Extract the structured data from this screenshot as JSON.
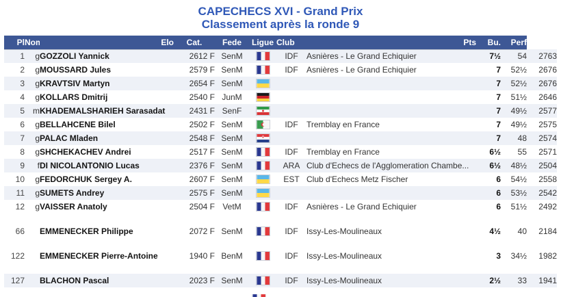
{
  "title": {
    "line1": "CAPECHECS XVI - Grand Prix",
    "line2": "Classement après la ronde 9"
  },
  "colors": {
    "title_blue": "#2f58b7",
    "header_bg": "#3d5795",
    "header_text": "#ffffff",
    "row_shaded_bg": "#eef1f7"
  },
  "table": {
    "headers": {
      "pl": "Pl",
      "nom": "Nom",
      "elo": "Elo",
      "cat": "Cat.",
      "fede": "Fede",
      "ligue": "Ligue",
      "club": "Club",
      "pts": "Pts",
      "bu": "Bu.",
      "perf": "Perf"
    },
    "rows": [
      {
        "rank": 1,
        "title": "g",
        "name": "GOZZOLI Yannick",
        "elo": "2612 F",
        "cat": "SenM",
        "flag": "FRA",
        "ligue": "IDF",
        "club": "Asnières - Le Grand Echiquier",
        "pts": "7½",
        "bu": "54",
        "perf": "2763",
        "gap_before": false
      },
      {
        "rank": 2,
        "title": "g",
        "name": "MOUSSARD Jules",
        "elo": "2579 F",
        "cat": "SenM",
        "flag": "FRA",
        "ligue": "IDF",
        "club": "Asnières - Le Grand Echiquier",
        "pts": "7",
        "bu": "52½",
        "perf": "2676",
        "gap_before": false
      },
      {
        "rank": 3,
        "title": "g",
        "name": "KRAVTSIV Martyn",
        "elo": "2654 F",
        "cat": "SenM",
        "flag": "UKR",
        "ligue": "",
        "club": "",
        "pts": "7",
        "bu": "52½",
        "perf": "2676",
        "gap_before": false
      },
      {
        "rank": 4,
        "title": "g",
        "name": "KOLLARS Dmitrij",
        "elo": "2540 F",
        "cat": "JunM",
        "flag": "GER",
        "ligue": "",
        "club": "",
        "pts": "7",
        "bu": "51½",
        "perf": "2646",
        "gap_before": false
      },
      {
        "rank": 5,
        "title": "m",
        "name": "KHADEMALSHARIEH Sarasadat",
        "elo": "2431 F",
        "cat": "SenF",
        "flag": "IRI",
        "ligue": "",
        "club": "",
        "pts": "7",
        "bu": "49½",
        "perf": "2577",
        "gap_before": false
      },
      {
        "rank": 6,
        "title": "g",
        "name": "BELLAHCENE Bilel",
        "elo": "2502 F",
        "cat": "SenM",
        "flag": "ALG",
        "ligue": "IDF",
        "club": "Tremblay en France",
        "pts": "7",
        "bu": "49½",
        "perf": "2575",
        "gap_before": false
      },
      {
        "rank": 7,
        "title": "g",
        "name": "PALAC Mladen",
        "elo": "2548 F",
        "cat": "SenM",
        "flag": "CRO",
        "ligue": "",
        "club": "",
        "pts": "7",
        "bu": "48",
        "perf": "2574",
        "gap_before": false
      },
      {
        "rank": 8,
        "title": "g",
        "name": "SHCHEKACHEV Andrei",
        "elo": "2517 F",
        "cat": "SenM",
        "flag": "FRA",
        "ligue": "IDF",
        "club": "Tremblay en France",
        "pts": "6½",
        "bu": "55",
        "perf": "2571",
        "gap_before": false
      },
      {
        "rank": 9,
        "title": "f",
        "name": "DI NICOLANTONIO Lucas",
        "elo": "2376 F",
        "cat": "SenM",
        "flag": "FRA",
        "ligue": "ARA",
        "club": "Club d'Echecs de l'Agglomeration Chambe...",
        "pts": "6½",
        "bu": "48½",
        "perf": "2504",
        "gap_before": false
      },
      {
        "rank": 10,
        "title": "g",
        "name": "FEDORCHUK Sergey A.",
        "elo": "2607 F",
        "cat": "SenM",
        "flag": "UKR",
        "ligue": "EST",
        "club": "Club d'Echecs Metz Fischer",
        "pts": "6",
        "bu": "54½",
        "perf": "2558",
        "gap_before": false
      },
      {
        "rank": 11,
        "title": "g",
        "name": "SUMETS Andrey",
        "elo": "2575 F",
        "cat": "SenM",
        "flag": "UKR",
        "ligue": "",
        "club": "",
        "pts": "6",
        "bu": "53½",
        "perf": "2542",
        "gap_before": false
      },
      {
        "rank": 12,
        "title": "g",
        "name": "VAISSER Anatoly",
        "elo": "2504 F",
        "cat": "VetM",
        "flag": "FRA",
        "ligue": "IDF",
        "club": "Asnières - Le Grand Echiquier",
        "pts": "6",
        "bu": "51½",
        "perf": "2492",
        "gap_before": false
      },
      {
        "rank": 66,
        "title": "",
        "name": "EMMENECKER Philippe",
        "elo": "2072 F",
        "cat": "SenM",
        "flag": "FRA",
        "ligue": "IDF",
        "club": "Issy-Les-Moulineaux",
        "pts": "4½",
        "bu": "40",
        "perf": "2184",
        "gap_before": true
      },
      {
        "rank": 122,
        "title": "",
        "name": "EMMENECKER Pierre-Antoine",
        "elo": "1940 F",
        "cat": "BenM",
        "flag": "FRA",
        "ligue": "IDF",
        "club": "Issy-Les-Moulineaux",
        "pts": "3",
        "bu": "34½",
        "perf": "1982",
        "gap_before": true
      },
      {
        "rank": 127,
        "title": "",
        "name": "BLACHON Pascal",
        "elo": "2023 F",
        "cat": "SenM",
        "flag": "FRA",
        "ligue": "IDF",
        "club": "Issy-Les-Moulineaux",
        "pts": "2½",
        "bu": "33",
        "perf": "1941",
        "gap_before": true
      }
    ]
  },
  "flags": {
    "FRA": {
      "dir": "v",
      "stripes": [
        "#2a3890",
        "#f6f6f6",
        "#e23a3c"
      ],
      "emblem": ""
    },
    "UKR": {
      "dir": "h",
      "stripes": [
        "#5bb7e8",
        "#ffd948"
      ],
      "emblem": ""
    },
    "GER": {
      "dir": "h",
      "stripes": [
        "#1a1a1a",
        "#cc2229",
        "#f5d13f"
      ],
      "emblem": ""
    },
    "IRI": {
      "dir": "h",
      "stripes": [
        "#2f9a48",
        "#f6f6f6",
        "#d93438"
      ],
      "emblem": "iri"
    },
    "ALG": {
      "dir": "v",
      "stripes": [
        "#3a9c4f",
        "#f6f6f6"
      ],
      "emblem": "alg"
    },
    "CRO": {
      "dir": "h",
      "stripes": [
        "#e03a3e",
        "#f6f6f6",
        "#27408b"
      ],
      "emblem": "cro"
    }
  },
  "cutoff": {
    "flag": "FRA"
  }
}
